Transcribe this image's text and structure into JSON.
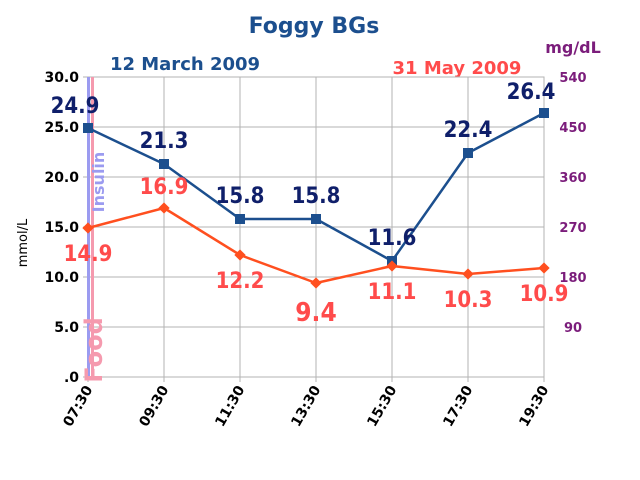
{
  "chart_data": {
    "type": "line",
    "title": "Foggy BGs",
    "x": [
      "07:30",
      "09:30",
      "11:30",
      "13:30",
      "15:30",
      "17:30",
      "19:30"
    ],
    "ylabel": "mmol/L",
    "ylabel_right": "mg/dL",
    "ylim": [
      0,
      30
    ],
    "ylim_right": [
      0,
      540
    ],
    "yticks_left": [
      "30.0",
      "25.0",
      "20.0",
      "15.0",
      "10.0",
      "5.0",
      ".0"
    ],
    "yticks_right": [
      "540",
      "450",
      "360",
      "270",
      "180",
      "90"
    ],
    "grid": true,
    "series": [
      {
        "name": "12 March 2009",
        "values": [
          24.9,
          21.3,
          15.8,
          15.8,
          11.6,
          22.4,
          26.4
        ],
        "labels": [
          "24.9",
          "21.3",
          "15.8",
          "15.8",
          "11.6",
          "22.4",
          "26.4"
        ],
        "color": "#1c4f8e",
        "label_color": "#0f1f6a"
      },
      {
        "name": "31 May 2009",
        "values": [
          14.9,
          16.9,
          12.2,
          9.4,
          11.1,
          10.3,
          10.9
        ],
        "labels": [
          "14.9",
          "16.9",
          "12.2",
          "9.4",
          "11.1",
          "10.3",
          "10.9"
        ],
        "color": "#ff4f1f",
        "label_color": "#ff4b4b"
      }
    ],
    "annotations": [
      {
        "text": "Insulin",
        "color": "#9b9bf0"
      },
      {
        "text": "Food",
        "color": "#f59aae"
      }
    ],
    "colors": {
      "title": "#1c4f8e",
      "right_axis": "#7b1d7b"
    }
  }
}
